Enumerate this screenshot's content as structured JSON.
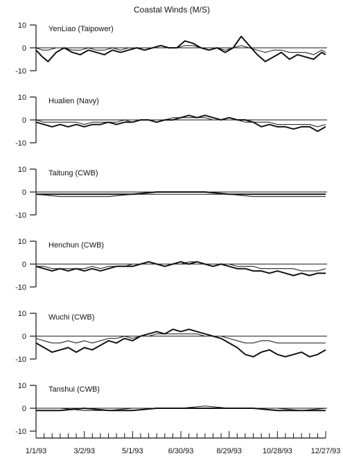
{
  "chart_data": {
    "type": "line",
    "title": "Coastal Winds (M/S)",
    "xlabel": "",
    "ylabel": "",
    "x_range": [
      "1/1/93",
      "12/27/93"
    ],
    "x_tick_labels": [
      "1/1/93",
      "3/2/93",
      "5/1/93",
      "6/30/93",
      "8/29/93",
      "10/28/93",
      "12/27/93"
    ],
    "ylim": [
      -10,
      10
    ],
    "y_tick_labels": [
      "10",
      "0",
      "-10"
    ],
    "grid": false,
    "panels": [
      {
        "label": "YenLiao (Taipower)",
        "x_days": [
          0,
          8,
          15,
          25,
          35,
          45,
          55,
          65,
          75,
          85,
          95,
          105,
          115,
          125,
          135,
          145,
          155,
          165,
          175,
          185,
          195,
          205,
          215,
          225,
          235,
          245,
          255,
          265,
          275,
          285,
          295,
          305,
          315,
          325,
          335,
          345,
          355,
          360
        ],
        "series": [
          {
            "values": [
              -1,
              -4,
              -6,
              -2,
              0,
              -2,
              -3,
              -1,
              -2,
              -3,
              -1,
              -2,
              -1,
              0,
              -1,
              0,
              1,
              0,
              0,
              3,
              2,
              0,
              -1,
              0,
              -2,
              0,
              5,
              1,
              -3,
              -6,
              -4,
              -2,
              -5,
              -3,
              -4,
              -5,
              -2,
              -3
            ]
          },
          {
            "values": [
              0,
              -1,
              -1,
              0,
              0,
              -1,
              -1,
              0,
              -1,
              -1,
              0,
              -1,
              0,
              0,
              0,
              0,
              0,
              0,
              0,
              1,
              1,
              0,
              0,
              0,
              -1,
              0,
              1,
              0,
              -1,
              -2,
              -1,
              -1,
              -2,
              -2,
              -2,
              -3,
              -1,
              -2
            ]
          }
        ]
      },
      {
        "label": "Hualien (Navy)",
        "x_days": [
          0,
          10,
          20,
          30,
          40,
          50,
          60,
          70,
          80,
          90,
          100,
          110,
          120,
          130,
          140,
          150,
          160,
          170,
          180,
          190,
          200,
          210,
          220,
          230,
          240,
          250,
          260,
          270,
          280,
          290,
          300,
          310,
          320,
          330,
          340,
          350,
          360
        ],
        "series": [
          {
            "values": [
              -1,
              -2,
              -3,
              -2,
              -3,
              -2,
              -3,
              -2,
              -2,
              -1,
              -2,
              -1,
              -1,
              0,
              0,
              -1,
              0,
              0,
              1,
              2,
              1,
              2,
              1,
              0,
              1,
              0,
              0,
              -1,
              -3,
              -2,
              -3,
              -3,
              -4,
              -3,
              -3,
              -5,
              -3
            ]
          },
          {
            "values": [
              0,
              -1,
              -1,
              -1,
              -1,
              -1,
              -2,
              -1,
              -1,
              -1,
              -1,
              0,
              -1,
              0,
              0,
              0,
              0,
              1,
              1,
              1,
              1,
              1,
              0,
              0,
              0,
              0,
              -1,
              -1,
              -1,
              -1,
              -2,
              -2,
              -2,
              -2,
              -2,
              -3,
              -2
            ]
          }
        ]
      },
      {
        "label": "Taitung (CWB)",
        "x_days": [
          0,
          30,
          60,
          90,
          120,
          150,
          180,
          210,
          240,
          270,
          300,
          330,
          360
        ],
        "series": [
          {
            "values": [
              -1,
              -1,
              -1,
              -1,
              -1,
              0,
              0,
              0,
              -1,
              -1,
              -1,
              -1,
              -1
            ]
          },
          {
            "values": [
              -1,
              -2,
              -2,
              -2,
              -1,
              -1,
              -1,
              -1,
              -1,
              -2,
              -2,
              -2,
              -2
            ]
          }
        ]
      },
      {
        "label": "Henchun (CWB)",
        "x_days": [
          0,
          10,
          20,
          30,
          40,
          50,
          60,
          70,
          80,
          90,
          100,
          110,
          120,
          130,
          140,
          150,
          160,
          170,
          180,
          190,
          200,
          210,
          220,
          230,
          240,
          250,
          260,
          270,
          280,
          290,
          300,
          310,
          320,
          330,
          340,
          350,
          360
        ],
        "series": [
          {
            "values": [
              -1,
              -2,
              -3,
              -2,
              -3,
              -2,
              -3,
              -2,
              -3,
              -2,
              -1,
              -1,
              -1,
              0,
              1,
              0,
              -1,
              0,
              1,
              0,
              1,
              0,
              -1,
              0,
              -1,
              -2,
              -2,
              -3,
              -3,
              -4,
              -3,
              -4,
              -5,
              -4,
              -5,
              -4,
              -4
            ]
          },
          {
            "values": [
              -1,
              -1,
              -2,
              -2,
              -2,
              -2,
              -2,
              -1,
              -2,
              -1,
              -1,
              -1,
              0,
              0,
              0,
              0,
              0,
              0,
              0,
              1,
              1,
              0,
              0,
              0,
              0,
              -1,
              -1,
              -1,
              -2,
              -2,
              -2,
              -2,
              -2,
              -3,
              -3,
              -3,
              -2
            ]
          }
        ]
      },
      {
        "label": "Wuchi (CWB)",
        "x_days": [
          0,
          10,
          20,
          30,
          40,
          50,
          60,
          70,
          80,
          90,
          100,
          110,
          120,
          130,
          140,
          150,
          160,
          170,
          180,
          190,
          200,
          210,
          220,
          230,
          240,
          250,
          260,
          270,
          280,
          290,
          300,
          310,
          320,
          330,
          340,
          350,
          360
        ],
        "series": [
          {
            "values": [
              -3,
              -5,
              -7,
              -6,
              -5,
              -7,
              -5,
              -6,
              -4,
              -2,
              -3,
              -1,
              -2,
              0,
              1,
              2,
              1,
              3,
              2,
              3,
              2,
              1,
              0,
              -1,
              -3,
              -5,
              -8,
              -9,
              -7,
              -6,
              -8,
              -9,
              -8,
              -7,
              -9,
              -8,
              -6
            ]
          },
          {
            "values": [
              -1,
              -2,
              -3,
              -3,
              -2,
              -3,
              -2,
              -3,
              -2,
              -1,
              -1,
              0,
              -1,
              0,
              0,
              1,
              1,
              1,
              1,
              1,
              1,
              0,
              0,
              0,
              -1,
              -2,
              -3,
              -3,
              -2,
              -2,
              -3,
              -3,
              -3,
              -3,
              -3,
              -3,
              -3
            ]
          }
        ]
      },
      {
        "label": "Tanshui (CWB)",
        "x_days": [
          0,
          30,
          60,
          90,
          120,
          150,
          180,
          210,
          240,
          270,
          300,
          330,
          360
        ],
        "series": [
          {
            "values": [
              -1,
              -1,
              0,
              -1,
              -1,
              0,
              0,
              0,
              0,
              0,
              -1,
              -1,
              -1
            ]
          },
          {
            "values": [
              0,
              0,
              -1,
              -1,
              0,
              0,
              0,
              1,
              0,
              0,
              0,
              -1,
              0
            ]
          }
        ]
      }
    ]
  }
}
